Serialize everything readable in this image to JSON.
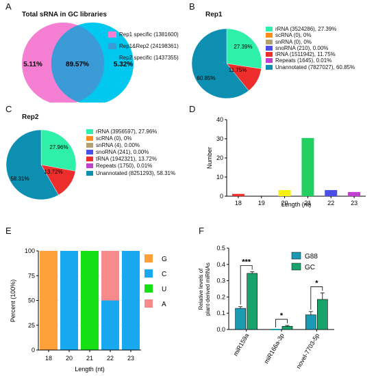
{
  "panels": {
    "A": {
      "letter": "A",
      "title": "Total sRNA in GC libraries",
      "legend": [
        "Rep1 specific (1381600)",
        "Rep1&Rep2 (24198361)",
        "Rep2 specific (1437355)"
      ],
      "labels": [
        "5.11%",
        "89.57%",
        "5.32%"
      ],
      "colors": [
        "#f47fd3",
        "#3b9bd6",
        "#00c8ee"
      ]
    },
    "B": {
      "letter": "B",
      "title": "Rep1",
      "slice_labels": [
        "27.39%",
        "11.75%",
        "60.85%"
      ],
      "legend": [
        {
          "label": "rRNA (3524286), 27.39%",
          "color": "#2ef0a8"
        },
        {
          "label": "scRNA (0), 0%",
          "color": "#ff8c1a"
        },
        {
          "label": "snRNA (0), 0%",
          "color": "#b5a070"
        },
        {
          "label": "snoRNA (210), 0.00%",
          "color": "#4a4fe8"
        },
        {
          "label": "tRNA (1511942), 11.75%",
          "color": "#ee2d2d"
        },
        {
          "label": "Repeats (1645), 0.01%",
          "color": "#c040d0"
        },
        {
          "label": "Unannotated (7827027), 60.85%",
          "color": "#0c8fb0"
        }
      ]
    },
    "C": {
      "letter": "C",
      "title": "Rep2",
      "slice_labels": [
        "27.96%",
        "13.72%",
        "58.31%"
      ],
      "legend": [
        {
          "label": "rRNA (3956597), 27.96%",
          "color": "#2ef0a8"
        },
        {
          "label": "scRNA (0), 0%",
          "color": "#ff8c1a"
        },
        {
          "label": "snRNA (4), 0.00%",
          "color": "#b5a070"
        },
        {
          "label": "snoRNA (241), 0.00%",
          "color": "#4a4fe8"
        },
        {
          "label": "tRNA (1942321), 13.72%",
          "color": "#ee2d2d"
        },
        {
          "label": "Repeats (1750), 0.01%",
          "color": "#c040d0"
        },
        {
          "label": "Unannotated (8251293), 58.31%",
          "color": "#0c8fb0"
        }
      ]
    },
    "D": {
      "letter": "D"
    },
    "E": {
      "letter": "E",
      "legend": [
        {
          "label": "G",
          "color": "#ffa038"
        },
        {
          "label": "C",
          "color": "#18a8f0"
        },
        {
          "label": "U",
          "color": "#14e014"
        },
        {
          "label": "A",
          "color": "#f78a8a"
        }
      ]
    },
    "F": {
      "letter": "F",
      "legend": [
        {
          "label": "G88",
          "color": "#1b9bb3"
        },
        {
          "label": "GC",
          "color": "#17a36a"
        }
      ],
      "sig": [
        "***",
        "*",
        "*"
      ]
    }
  },
  "chart_data": [
    {
      "id": "A",
      "type": "venn",
      "title": "Total sRNA in GC libraries",
      "sets": [
        "Rep1 specific (1381600)",
        "Rep1&Rep2 (24198361)",
        "Rep2 specific (1437355)"
      ],
      "values": [
        5.11,
        89.57,
        5.32
      ]
    },
    {
      "id": "B",
      "type": "pie",
      "title": "Rep1",
      "categories": [
        "rRNA",
        "scRNA",
        "snRNA",
        "snoRNA",
        "tRNA",
        "Repeats",
        "Unannotated"
      ],
      "values": [
        27.39,
        0,
        0,
        0.0,
        11.75,
        0.01,
        60.85
      ]
    },
    {
      "id": "C",
      "type": "pie",
      "title": "Rep2",
      "categories": [
        "rRNA",
        "scRNA",
        "snRNA",
        "snoRNA",
        "tRNA",
        "Repeats",
        "Unannotated"
      ],
      "values": [
        27.96,
        0,
        0.0,
        0.0,
        13.72,
        0.01,
        58.31
      ]
    },
    {
      "id": "D",
      "type": "bar",
      "categories": [
        "18",
        "19",
        "20",
        "21",
        "22",
        "23"
      ],
      "values": [
        1.2,
        0,
        3.2,
        30.4,
        3.2,
        2.2
      ],
      "colors": [
        "#ee2d2d",
        "#999999",
        "#f5f010",
        "#22d062",
        "#4a4fe8",
        "#c040d0"
      ],
      "xlabel": "Length (nt)",
      "ylabel": "Number",
      "ylim": [
        0,
        40
      ],
      "yticks": [
        0,
        10,
        20,
        30,
        40
      ]
    },
    {
      "id": "E",
      "type": "bar",
      "stacked": true,
      "categories": [
        "18",
        "20",
        "21",
        "22",
        "23"
      ],
      "series": [
        {
          "name": "G",
          "values": [
            100,
            0,
            0,
            0,
            0
          ]
        },
        {
          "name": "C",
          "values": [
            0,
            100,
            0,
            50,
            100
          ]
        },
        {
          "name": "U",
          "values": [
            0,
            0,
            100,
            0,
            0
          ]
        },
        {
          "name": "A",
          "values": [
            0,
            0,
            0,
            50,
            0
          ]
        }
      ],
      "xlabel": "Length (nt)",
      "ylabel": "Percent (100%)",
      "ylim": [
        0,
        100
      ],
      "yticks": [
        0,
        25,
        50,
        75,
        100
      ]
    },
    {
      "id": "F",
      "type": "bar",
      "categories": [
        "miR159a",
        "miR166a-3p",
        "novel-7703-5p"
      ],
      "series": [
        {
          "name": "G88",
          "values": [
            0.13,
            0.0,
            0.09
          ],
          "err": [
            0.01,
            0.0,
            0.02
          ]
        },
        {
          "name": "GC",
          "values": [
            0.345,
            0.02,
            0.185
          ],
          "err": [
            0.01,
            0.005,
            0.04
          ]
        }
      ],
      "ylabel": "Relative levels of plant-derived miRNAs",
      "ylim": [
        0,
        0.5
      ],
      "yticks": [
        "0.0",
        "0.1",
        "0.2",
        "0.3",
        "0.4",
        "0.5"
      ],
      "significance": [
        "***",
        "*",
        "*"
      ]
    }
  ]
}
